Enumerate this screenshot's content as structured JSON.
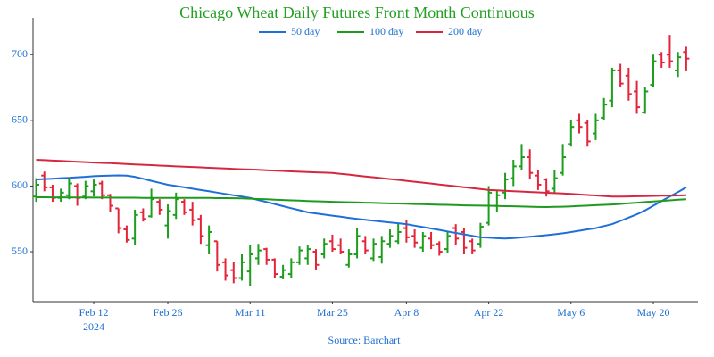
{
  "chart_data": {
    "type": "ohlc",
    "title": "Chicago Wheat Daily Futures Front Month Continuous",
    "source": "Source: Barchart",
    "up_color": "#1e9e1e",
    "down_color": "#e3253a",
    "categories": [
      "2024-02-01",
      "2024-02-02",
      "2024-02-05",
      "2024-02-06",
      "2024-02-07",
      "2024-02-08",
      "2024-02-09",
      "2024-02-12",
      "2024-02-13",
      "2024-02-14",
      "2024-02-15",
      "2024-02-16",
      "2024-02-20",
      "2024-02-21",
      "2024-02-22",
      "2024-02-23",
      "2024-02-26",
      "2024-02-27",
      "2024-02-28",
      "2024-02-29",
      "2024-03-01",
      "2024-03-04",
      "2024-03-05",
      "2024-03-06",
      "2024-03-07",
      "2024-03-08",
      "2024-03-11",
      "2024-03-12",
      "2024-03-13",
      "2024-03-14",
      "2024-03-15",
      "2024-03-18",
      "2024-03-19",
      "2024-03-20",
      "2024-03-21",
      "2024-03-22",
      "2024-03-25",
      "2024-03-26",
      "2024-03-27",
      "2024-03-28",
      "2024-04-01",
      "2024-04-02",
      "2024-04-03",
      "2024-04-04",
      "2024-04-05",
      "2024-04-08",
      "2024-04-09",
      "2024-04-10",
      "2024-04-11",
      "2024-04-12",
      "2024-04-15",
      "2024-04-16",
      "2024-04-17",
      "2024-04-18",
      "2024-04-19",
      "2024-04-22",
      "2024-04-23",
      "2024-04-24",
      "2024-04-25",
      "2024-04-26",
      "2024-04-29",
      "2024-04-30",
      "2024-05-01",
      "2024-05-02",
      "2024-05-03",
      "2024-05-06",
      "2024-05-07",
      "2024-05-08",
      "2024-05-09",
      "2024-05-10",
      "2024-05-13",
      "2024-05-14",
      "2024-05-15",
      "2024-05-16",
      "2024-05-17",
      "2024-05-20",
      "2024-05-21",
      "2024-05-22",
      "2024-05-23",
      "2024-05-24"
    ],
    "open": [
      592,
      608,
      599,
      591,
      593,
      600,
      592,
      596,
      602,
      593,
      583,
      567,
      560,
      580,
      577,
      588,
      570,
      578,
      588,
      582,
      575,
      555,
      558,
      542,
      536,
      530,
      535,
      545,
      552,
      544,
      531,
      533,
      542,
      545,
      550,
      548,
      558,
      555,
      540,
      548,
      558,
      545,
      546,
      556,
      558,
      568,
      562,
      553,
      560,
      556,
      552,
      568,
      565,
      558,
      556,
      572,
      585,
      595,
      606,
      615,
      622,
      608,
      605,
      598,
      610,
      632,
      650,
      648,
      640,
      652,
      665,
      688,
      684,
      672,
      656,
      677,
      700,
      700,
      688,
      702
    ],
    "high": [
      606,
      611,
      601,
      598,
      606,
      602,
      604,
      605,
      604,
      594,
      583,
      570,
      582,
      583,
      598,
      590,
      586,
      595,
      590,
      588,
      578,
      570,
      558,
      545,
      542,
      548,
      555,
      556,
      553,
      545,
      540,
      545,
      554,
      555,
      552,
      560,
      563,
      560,
      552,
      568,
      562,
      560,
      562,
      567,
      572,
      574,
      567,
      565,
      565,
      558,
      566,
      571,
      568,
      560,
      572,
      600,
      597,
      610,
      620,
      632,
      628,
      612,
      606,
      612,
      632,
      650,
      655,
      650,
      655,
      667,
      690,
      693,
      690,
      680,
      675,
      700,
      702,
      715,
      702,
      706
    ],
    "low": [
      588,
      596,
      588,
      588,
      590,
      585,
      590,
      592,
      590,
      580,
      564,
      557,
      555,
      573,
      576,
      578,
      560,
      575,
      578,
      570,
      556,
      548,
      535,
      528,
      526,
      528,
      524,
      540,
      540,
      530,
      529,
      530,
      540,
      540,
      536,
      545,
      550,
      548,
      538,
      545,
      548,
      543,
      541,
      553,
      556,
      557,
      553,
      550,
      552,
      547,
      549,
      555,
      548,
      548,
      553,
      570,
      580,
      590,
      600,
      612,
      605,
      597,
      592,
      595,
      608,
      630,
      640,
      630,
      635,
      650,
      660,
      675,
      665,
      655,
      655,
      675,
      690,
      690,
      683,
      688
    ],
    "close": [
      601,
      599,
      591,
      595,
      602,
      591,
      600,
      601,
      593,
      585,
      568,
      559,
      578,
      575,
      590,
      582,
      581,
      590,
      580,
      574,
      562,
      565,
      540,
      532,
      530,
      542,
      548,
      551,
      544,
      533,
      536,
      542,
      551,
      552,
      540,
      556,
      552,
      550,
      548,
      562,
      551,
      556,
      558,
      562,
      565,
      561,
      557,
      562,
      555,
      550,
      562,
      560,
      553,
      551,
      569,
      595,
      593,
      605,
      615,
      622,
      610,
      601,
      596,
      606,
      622,
      645,
      645,
      634,
      650,
      662,
      688,
      678,
      670,
      660,
      672,
      695,
      694,
      695,
      698,
      697
    ],
    "series": [
      {
        "name": "50 day",
        "color": "#1f6fd9",
        "values": [
          605,
          605.3,
          605.6,
          606,
          606.3,
          606.7,
          607,
          607.5,
          607.8,
          608,
          608.1,
          608,
          607,
          605.5,
          604,
          602.5,
          601,
          600,
          599,
          598,
          597,
          596,
          595,
          594,
          593,
          592,
          591,
          589.4,
          587.9,
          586.3,
          584.7,
          583.1,
          581.6,
          580,
          579.2,
          578.3,
          577.5,
          576.7,
          575.8,
          575,
          574.3,
          573.7,
          573,
          572.3,
          571.7,
          571,
          569.9,
          568.8,
          567.7,
          566.6,
          565.4,
          564.3,
          563.2,
          562.1,
          561,
          560.7,
          560.3,
          560,
          560.4,
          560.9,
          561.4,
          562,
          562.6,
          563.3,
          564,
          565,
          566,
          567,
          568,
          569.5,
          571,
          573.5,
          576,
          578.5,
          581.5,
          585,
          588.5,
          592,
          595.5,
          599
        ]
      },
      {
        "name": "100 day",
        "color": "#1e9a1e",
        "values": [
          591.5,
          591.5,
          591.4,
          591.4,
          591.3,
          591.3,
          591.3,
          591.2,
          591.2,
          591.2,
          591.1,
          591.1,
          591.1,
          591,
          591,
          591,
          591,
          591,
          591,
          591,
          590.9,
          590.9,
          590.8,
          590.8,
          590.7,
          590.6,
          590.4,
          590.1,
          589.9,
          589.6,
          589.4,
          589.1,
          588.9,
          588.6,
          588.4,
          588.2,
          588,
          587.8,
          587.7,
          587.5,
          587.3,
          587.2,
          587,
          586.8,
          586.7,
          586.5,
          586.3,
          586.2,
          586,
          585.8,
          585.7,
          585.5,
          585.3,
          585.2,
          585.1,
          585,
          584.9,
          584.7,
          584.6,
          584.4,
          584.3,
          584.1,
          584,
          584.2,
          584.3,
          584.5,
          584.8,
          585.1,
          585.4,
          585.7,
          586,
          586.4,
          586.9,
          587.3,
          587.8,
          588.2,
          588.7,
          589.1,
          589.6,
          590
        ]
      },
      {
        "name": "200 day",
        "color": "#d62740",
        "values": [
          620,
          619.7,
          619.4,
          619.1,
          618.8,
          618.5,
          618.2,
          617.9,
          617.6,
          617.4,
          617.1,
          616.8,
          616.5,
          616.2,
          615.9,
          615.6,
          615.3,
          615,
          614.7,
          614.5,
          614.2,
          613.9,
          613.6,
          613.4,
          613.1,
          612.8,
          612.6,
          612.3,
          612,
          611.8,
          611.5,
          611.2,
          610.9,
          610.6,
          610.4,
          610.2,
          610,
          609.3,
          608.7,
          608,
          607.3,
          606.7,
          606,
          605.3,
          604.7,
          604,
          603.3,
          602.6,
          601.9,
          601.2,
          600.5,
          599.8,
          599.1,
          598.4,
          597.7,
          597,
          596.7,
          596.4,
          596.1,
          595.8,
          595.5,
          595.2,
          594.9,
          594.6,
          594.3,
          594,
          593.6,
          593.2,
          592.8,
          592.4,
          592,
          592,
          592.1,
          592.2,
          592.3,
          592.5,
          592.6,
          592.7,
          592.8,
          593
        ]
      }
    ],
    "ylim": [
      512,
      728
    ],
    "yticks": [
      550,
      600,
      650,
      700
    ],
    "xticks": [
      {
        "value": "2024-02-12",
        "label": "Feb 12"
      },
      {
        "value": "2024-02-26",
        "label": "Feb 26"
      },
      {
        "value": "2024-03-11",
        "label": "Mar 11"
      },
      {
        "value": "2024-03-25",
        "label": "Mar 25"
      },
      {
        "value": "2024-04-08",
        "label": "Apr 8"
      },
      {
        "value": "2024-04-22",
        "label": "Apr 22"
      },
      {
        "value": "2024-05-06",
        "label": "May 6"
      },
      {
        "value": "2024-05-20",
        "label": "May 20"
      }
    ],
    "xtick_year": "2024",
    "grid": false
  }
}
